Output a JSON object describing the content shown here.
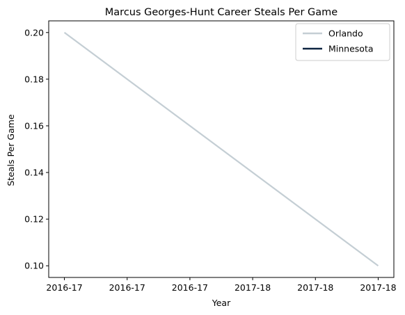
{
  "chart_data": {
    "type": "line",
    "title": "Marcus Georges-Hunt Career Steals Per Game",
    "xlabel": "Year",
    "ylabel": "Steals Per Game",
    "x_tick_labels": [
      "2016-17",
      "2016-17",
      "2016-17",
      "2017-18",
      "2017-18",
      "2017-18"
    ],
    "x": [
      0,
      1
    ],
    "ylim": [
      0.095,
      0.205
    ],
    "yticks": [
      0.1,
      0.12,
      0.14,
      0.16,
      0.18,
      0.2
    ],
    "ytick_labels": [
      "0.10",
      "0.12",
      "0.14",
      "0.16",
      "0.18",
      "0.20"
    ],
    "series": [
      {
        "name": "Orlando",
        "color": "#C4CED4",
        "x": [
          0,
          1
        ],
        "values": [
          0.2,
          0.1
        ]
      },
      {
        "name": "Minnesota",
        "color": "#0C2340",
        "x": [],
        "values": []
      }
    ],
    "grid": false,
    "legend_position": "top-right"
  }
}
